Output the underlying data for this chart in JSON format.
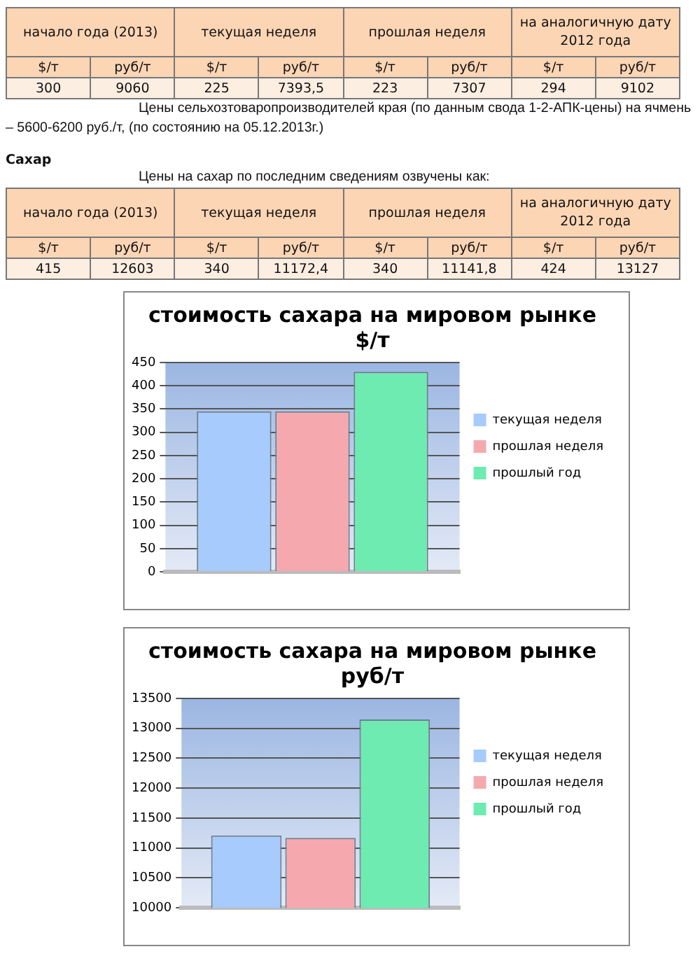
{
  "chart_data": [
    {
      "type": "other",
      "annotations": [
        "начало года (2013)",
        "текущая неделя",
        "прошлая неделя",
        "на аналогичную дату 2012 года",
        "$/т",
        "руб/т",
        "$/т",
        "руб/т",
        "$/т",
        "руб/т",
        "$/т",
        "руб/т",
        "300",
        "9060",
        "225",
        "7393,5",
        "223",
        "7307",
        "294",
        "9102",
        "Цены сельхозтоваропроизводителей края (по данным свода 1-2-АПК-цены) на ячмень – 5600-6200 руб./т, (по состоянию на 05.12.2013г.)",
        "Сахар",
        "Цены на сахар по последним сведениям озвучены как:",
        "начало года (2013)",
        "текущая неделя",
        "прошлая неделя",
        "на аналогичную дату 2012 года",
        "$/т",
        "руб/т",
        "$/т",
        "руб/т",
        "$/т",
        "руб/т",
        "$/т",
        "руб/т",
        "415",
        "12603",
        "340",
        "11172,4",
        "340",
        "11141,8",
        "424",
        "13127"
      ]
    },
    {
      "type": "bar",
      "title": "стоимость сахара на мировом рынке $/т",
      "categories": [
        null
      ],
      "series": [
        {
          "name": "текущая неделя",
          "color": "#a6cbfc",
          "values": [
            345
          ]
        },
        {
          "name": "прошлая неделя",
          "color": "#f5a9ae",
          "values": [
            345
          ]
        },
        {
          "name": "прошлый год",
          "color": "#6eebb0",
          "values": [
            430
          ]
        }
      ],
      "ylim": [
        0,
        450
      ],
      "yticks": [
        0,
        50,
        100,
        150,
        200,
        250,
        300,
        350,
        400,
        450
      ],
      "grid": "y",
      "legend": "right"
    },
    {
      "type": "bar",
      "title": "стоимость сахара на мировом рынке руб/т",
      "categories": [
        null
      ],
      "series": [
        {
          "name": "текущая неделя",
          "color": "#a6cbfc",
          "values": [
            11210
          ]
        },
        {
          "name": "прошлая неделя",
          "color": "#f5a9ae",
          "values": [
            11170
          ]
        },
        {
          "name": "прошлый год",
          "color": "#6eebb0",
          "values": [
            13150
          ]
        }
      ],
      "ylim": [
        10000,
        13500
      ],
      "yticks": [
        10000,
        10500,
        11000,
        11500,
        12000,
        12500,
        13000,
        13500
      ],
      "grid": "y",
      "legend": "right"
    }
  ]
}
